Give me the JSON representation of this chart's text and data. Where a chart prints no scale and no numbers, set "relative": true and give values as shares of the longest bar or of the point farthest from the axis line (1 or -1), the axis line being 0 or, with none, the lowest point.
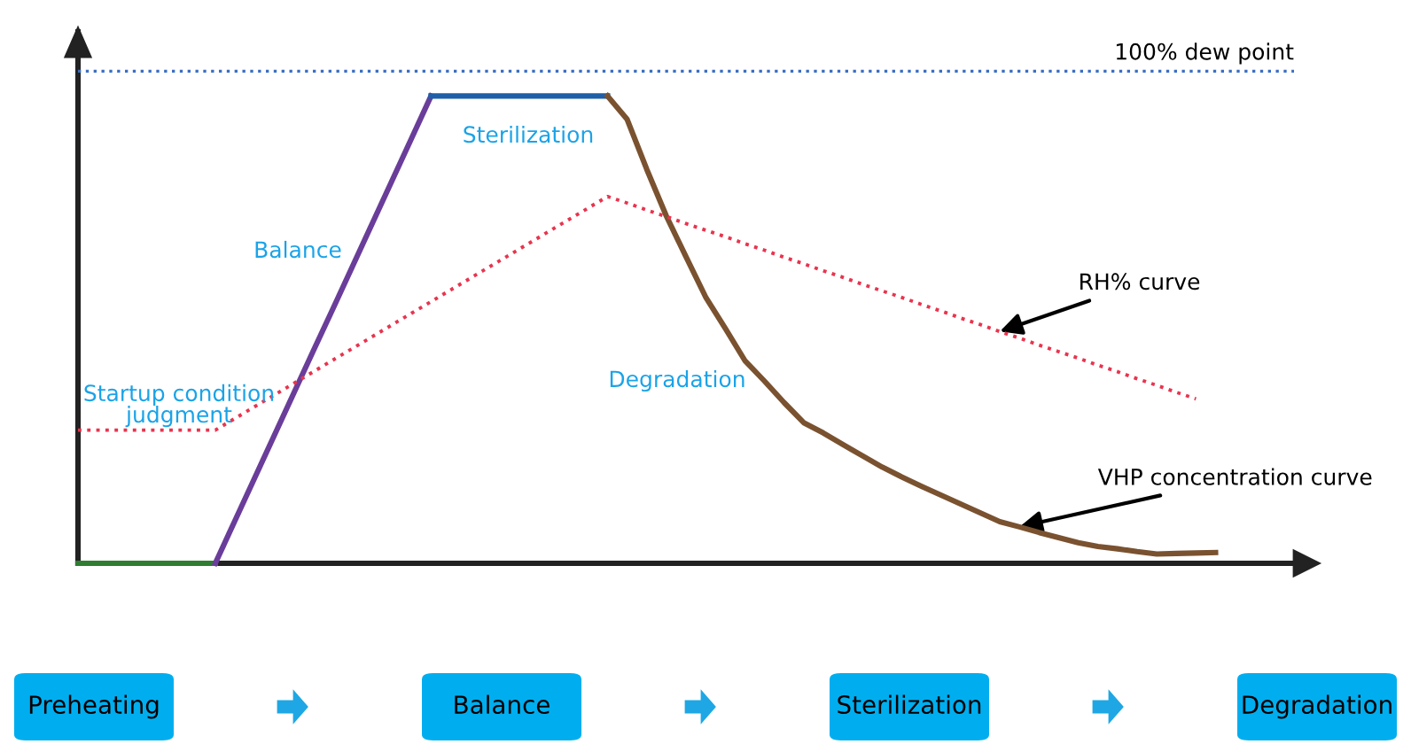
{
  "chart_data": {
    "type": "line",
    "relative": true,
    "legend": false,
    "marker": "none",
    "categories": [
      null,
      null,
      null,
      null,
      null,
      null,
      null,
      null,
      null,
      null,
      null,
      null,
      null,
      null,
      null,
      null,
      null,
      null,
      null,
      null,
      null,
      null,
      null,
      null,
      null,
      null,
      null,
      null,
      null,
      null,
      null,
      null,
      null,
      null,
      null,
      null,
      null,
      null,
      null,
      null,
      null,
      null,
      null,
      null,
      null,
      null,
      null,
      null,
      null,
      null,
      null,
      null,
      null,
      null,
      null,
      null,
      null,
      null,
      null,
      null,
      null,
      null,
      null
    ],
    "series": [
      {
        "color": "#2e7d32",
        "line_style": "solid",
        "values": [
          0,
          0,
          0,
          0,
          0,
          0,
          0,
          0,
          null,
          null,
          null,
          null,
          null,
          null,
          null,
          null,
          null,
          null,
          null,
          null,
          null,
          null,
          null,
          null,
          null,
          null,
          null,
          null,
          null,
          null,
          null,
          null,
          null,
          null,
          null,
          null,
          null,
          null,
          null,
          null,
          null,
          null,
          null,
          null,
          null,
          null,
          null,
          null,
          null,
          null,
          null,
          null,
          null,
          null,
          null,
          null,
          null,
          null,
          null,
          null,
          null,
          null,
          null
        ]
      },
      {
        "color": "#6a3d9a",
        "line_style": "solid",
        "values": [
          null,
          null,
          null,
          null,
          null,
          null,
          null,
          0,
          0.091,
          0.182,
          0.273,
          0.364,
          0.455,
          0.545,
          0.636,
          0.727,
          0.818,
          0.909,
          1,
          null,
          null,
          null,
          null,
          null,
          null,
          null,
          null,
          null,
          null,
          null,
          null,
          null,
          null,
          null,
          null,
          null,
          null,
          null,
          null,
          null,
          null,
          null,
          null,
          null,
          null,
          null,
          null,
          null,
          null,
          null,
          null,
          null,
          null,
          null,
          null,
          null,
          null,
          null,
          null,
          null,
          null,
          null,
          null
        ]
      },
      {
        "color": "#1f5fa8",
        "line_style": "solid",
        "values": [
          null,
          null,
          null,
          null,
          null,
          null,
          null,
          null,
          null,
          null,
          null,
          null,
          null,
          null,
          null,
          null,
          null,
          null,
          1,
          1,
          1,
          1,
          1,
          1,
          1,
          1,
          1,
          1,
          null,
          null,
          null,
          null,
          null,
          null,
          null,
          null,
          null,
          null,
          null,
          null,
          null,
          null,
          null,
          null,
          null,
          null,
          null,
          null,
          null,
          null,
          null,
          null,
          null,
          null,
          null,
          null,
          null,
          null,
          null,
          null,
          null,
          null,
          null
        ]
      },
      {
        "name": "VHP concentration curve",
        "color": "#7a5230",
        "line_style": "solid",
        "values": [
          null,
          null,
          null,
          null,
          null,
          null,
          null,
          null,
          null,
          null,
          null,
          null,
          null,
          null,
          null,
          null,
          null,
          null,
          null,
          null,
          null,
          null,
          null,
          null,
          null,
          null,
          null,
          1,
          0.95,
          0.843,
          0.743,
          0.656,
          0.57,
          0.503,
          0.434,
          0.39,
          0.344,
          0.301,
          0.279,
          0.254,
          0.23,
          0.206,
          0.185,
          0.165,
          0.146,
          0.127,
          0.108,
          0.089,
          0.078,
          0.066,
          0.055,
          0.044,
          0.036,
          0.031,
          0.025,
          0.02,
          0.021,
          0.022,
          0.023,
          null,
          null,
          null,
          null
        ]
      },
      {
        "name": "RH% curve",
        "color": "#e8344e",
        "line_style": "dotted",
        "values": [
          0.285,
          0.285,
          0.285,
          0.285,
          0.285,
          0.285,
          0.285,
          0.285,
          0.31,
          0.335,
          0.36,
          0.385,
          0.41,
          0.435,
          0.46,
          0.485,
          0.51,
          0.535,
          0.56,
          0.585,
          0.61,
          0.635,
          0.66,
          0.685,
          0.71,
          0.735,
          0.76,
          0.785,
          0.771,
          0.756,
          0.742,
          0.727,
          0.713,
          0.699,
          0.684,
          0.67,
          0.655,
          0.641,
          0.626,
          0.612,
          0.597,
          0.583,
          0.569,
          0.554,
          0.54,
          0.525,
          0.511,
          0.496,
          0.482,
          0.467,
          0.453,
          0.439,
          0.424,
          0.41,
          0.395,
          0.381,
          0.366,
          0.352,
          null,
          null,
          null,
          null,
          null
        ]
      }
    ],
    "ref_lines": [
      {
        "axis": "y",
        "value": 1.053,
        "label": "100% dew point",
        "color": "#3a6fc4",
        "line_style": "dotted"
      }
    ],
    "annotations": [
      "Sterilization",
      "Balance",
      "Startup condition\njudgment",
      "Degradation",
      "Preheating",
      "Balance",
      "Sterilization",
      "Degradation"
    ]
  }
}
